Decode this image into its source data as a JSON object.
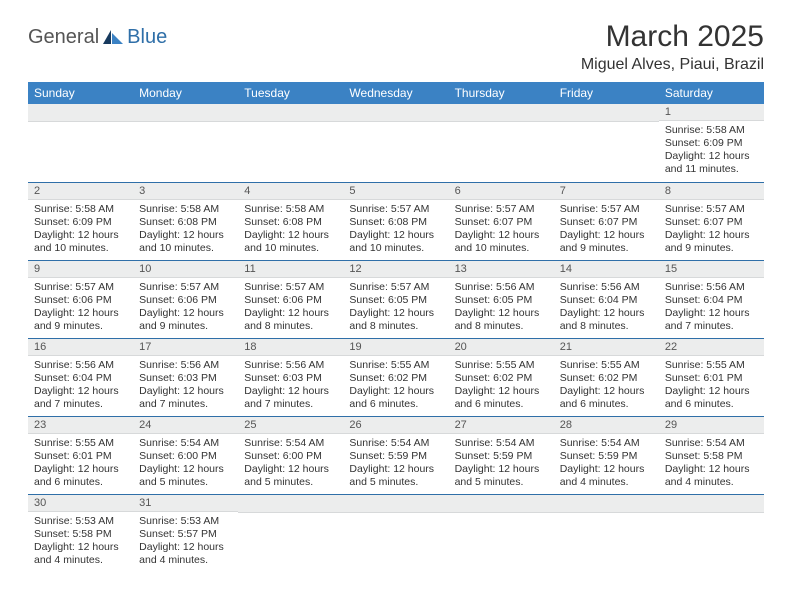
{
  "brand": {
    "part1": "General",
    "part2": "Blue"
  },
  "title": "March 2025",
  "location": "Miguel Alves, Piaui, Brazil",
  "colors": {
    "header_bg": "#3b82c4",
    "header_text": "#ffffff",
    "daynum_bg": "#eceded",
    "row_border": "#2f6fa8",
    "brand_gray": "#555555",
    "brand_blue": "#2f6fa8"
  },
  "day_headers": [
    "Sunday",
    "Monday",
    "Tuesday",
    "Wednesday",
    "Thursday",
    "Friday",
    "Saturday"
  ],
  "weeks": [
    [
      null,
      null,
      null,
      null,
      null,
      null,
      {
        "n": "1",
        "sr": "5:58 AM",
        "ss": "6:09 PM",
        "dl": "12 hours and 11 minutes."
      }
    ],
    [
      {
        "n": "2",
        "sr": "5:58 AM",
        "ss": "6:09 PM",
        "dl": "12 hours and 10 minutes."
      },
      {
        "n": "3",
        "sr": "5:58 AM",
        "ss": "6:08 PM",
        "dl": "12 hours and 10 minutes."
      },
      {
        "n": "4",
        "sr": "5:58 AM",
        "ss": "6:08 PM",
        "dl": "12 hours and 10 minutes."
      },
      {
        "n": "5",
        "sr": "5:57 AM",
        "ss": "6:08 PM",
        "dl": "12 hours and 10 minutes."
      },
      {
        "n": "6",
        "sr": "5:57 AM",
        "ss": "6:07 PM",
        "dl": "12 hours and 10 minutes."
      },
      {
        "n": "7",
        "sr": "5:57 AM",
        "ss": "6:07 PM",
        "dl": "12 hours and 9 minutes."
      },
      {
        "n": "8",
        "sr": "5:57 AM",
        "ss": "6:07 PM",
        "dl": "12 hours and 9 minutes."
      }
    ],
    [
      {
        "n": "9",
        "sr": "5:57 AM",
        "ss": "6:06 PM",
        "dl": "12 hours and 9 minutes."
      },
      {
        "n": "10",
        "sr": "5:57 AM",
        "ss": "6:06 PM",
        "dl": "12 hours and 9 minutes."
      },
      {
        "n": "11",
        "sr": "5:57 AM",
        "ss": "6:06 PM",
        "dl": "12 hours and 8 minutes."
      },
      {
        "n": "12",
        "sr": "5:57 AM",
        "ss": "6:05 PM",
        "dl": "12 hours and 8 minutes."
      },
      {
        "n": "13",
        "sr": "5:56 AM",
        "ss": "6:05 PM",
        "dl": "12 hours and 8 minutes."
      },
      {
        "n": "14",
        "sr": "5:56 AM",
        "ss": "6:04 PM",
        "dl": "12 hours and 8 minutes."
      },
      {
        "n": "15",
        "sr": "5:56 AM",
        "ss": "6:04 PM",
        "dl": "12 hours and 7 minutes."
      }
    ],
    [
      {
        "n": "16",
        "sr": "5:56 AM",
        "ss": "6:04 PM",
        "dl": "12 hours and 7 minutes."
      },
      {
        "n": "17",
        "sr": "5:56 AM",
        "ss": "6:03 PM",
        "dl": "12 hours and 7 minutes."
      },
      {
        "n": "18",
        "sr": "5:56 AM",
        "ss": "6:03 PM",
        "dl": "12 hours and 7 minutes."
      },
      {
        "n": "19",
        "sr": "5:55 AM",
        "ss": "6:02 PM",
        "dl": "12 hours and 6 minutes."
      },
      {
        "n": "20",
        "sr": "5:55 AM",
        "ss": "6:02 PM",
        "dl": "12 hours and 6 minutes."
      },
      {
        "n": "21",
        "sr": "5:55 AM",
        "ss": "6:02 PM",
        "dl": "12 hours and 6 minutes."
      },
      {
        "n": "22",
        "sr": "5:55 AM",
        "ss": "6:01 PM",
        "dl": "12 hours and 6 minutes."
      }
    ],
    [
      {
        "n": "23",
        "sr": "5:55 AM",
        "ss": "6:01 PM",
        "dl": "12 hours and 6 minutes."
      },
      {
        "n": "24",
        "sr": "5:54 AM",
        "ss": "6:00 PM",
        "dl": "12 hours and 5 minutes."
      },
      {
        "n": "25",
        "sr": "5:54 AM",
        "ss": "6:00 PM",
        "dl": "12 hours and 5 minutes."
      },
      {
        "n": "26",
        "sr": "5:54 AM",
        "ss": "5:59 PM",
        "dl": "12 hours and 5 minutes."
      },
      {
        "n": "27",
        "sr": "5:54 AM",
        "ss": "5:59 PM",
        "dl": "12 hours and 5 minutes."
      },
      {
        "n": "28",
        "sr": "5:54 AM",
        "ss": "5:59 PM",
        "dl": "12 hours and 4 minutes."
      },
      {
        "n": "29",
        "sr": "5:54 AM",
        "ss": "5:58 PM",
        "dl": "12 hours and 4 minutes."
      }
    ],
    [
      {
        "n": "30",
        "sr": "5:53 AM",
        "ss": "5:58 PM",
        "dl": "12 hours and 4 minutes."
      },
      {
        "n": "31",
        "sr": "5:53 AM",
        "ss": "5:57 PM",
        "dl": "12 hours and 4 minutes."
      },
      null,
      null,
      null,
      null,
      null
    ]
  ],
  "labels": {
    "sunrise": "Sunrise:",
    "sunset": "Sunset:",
    "daylight": "Daylight:"
  }
}
